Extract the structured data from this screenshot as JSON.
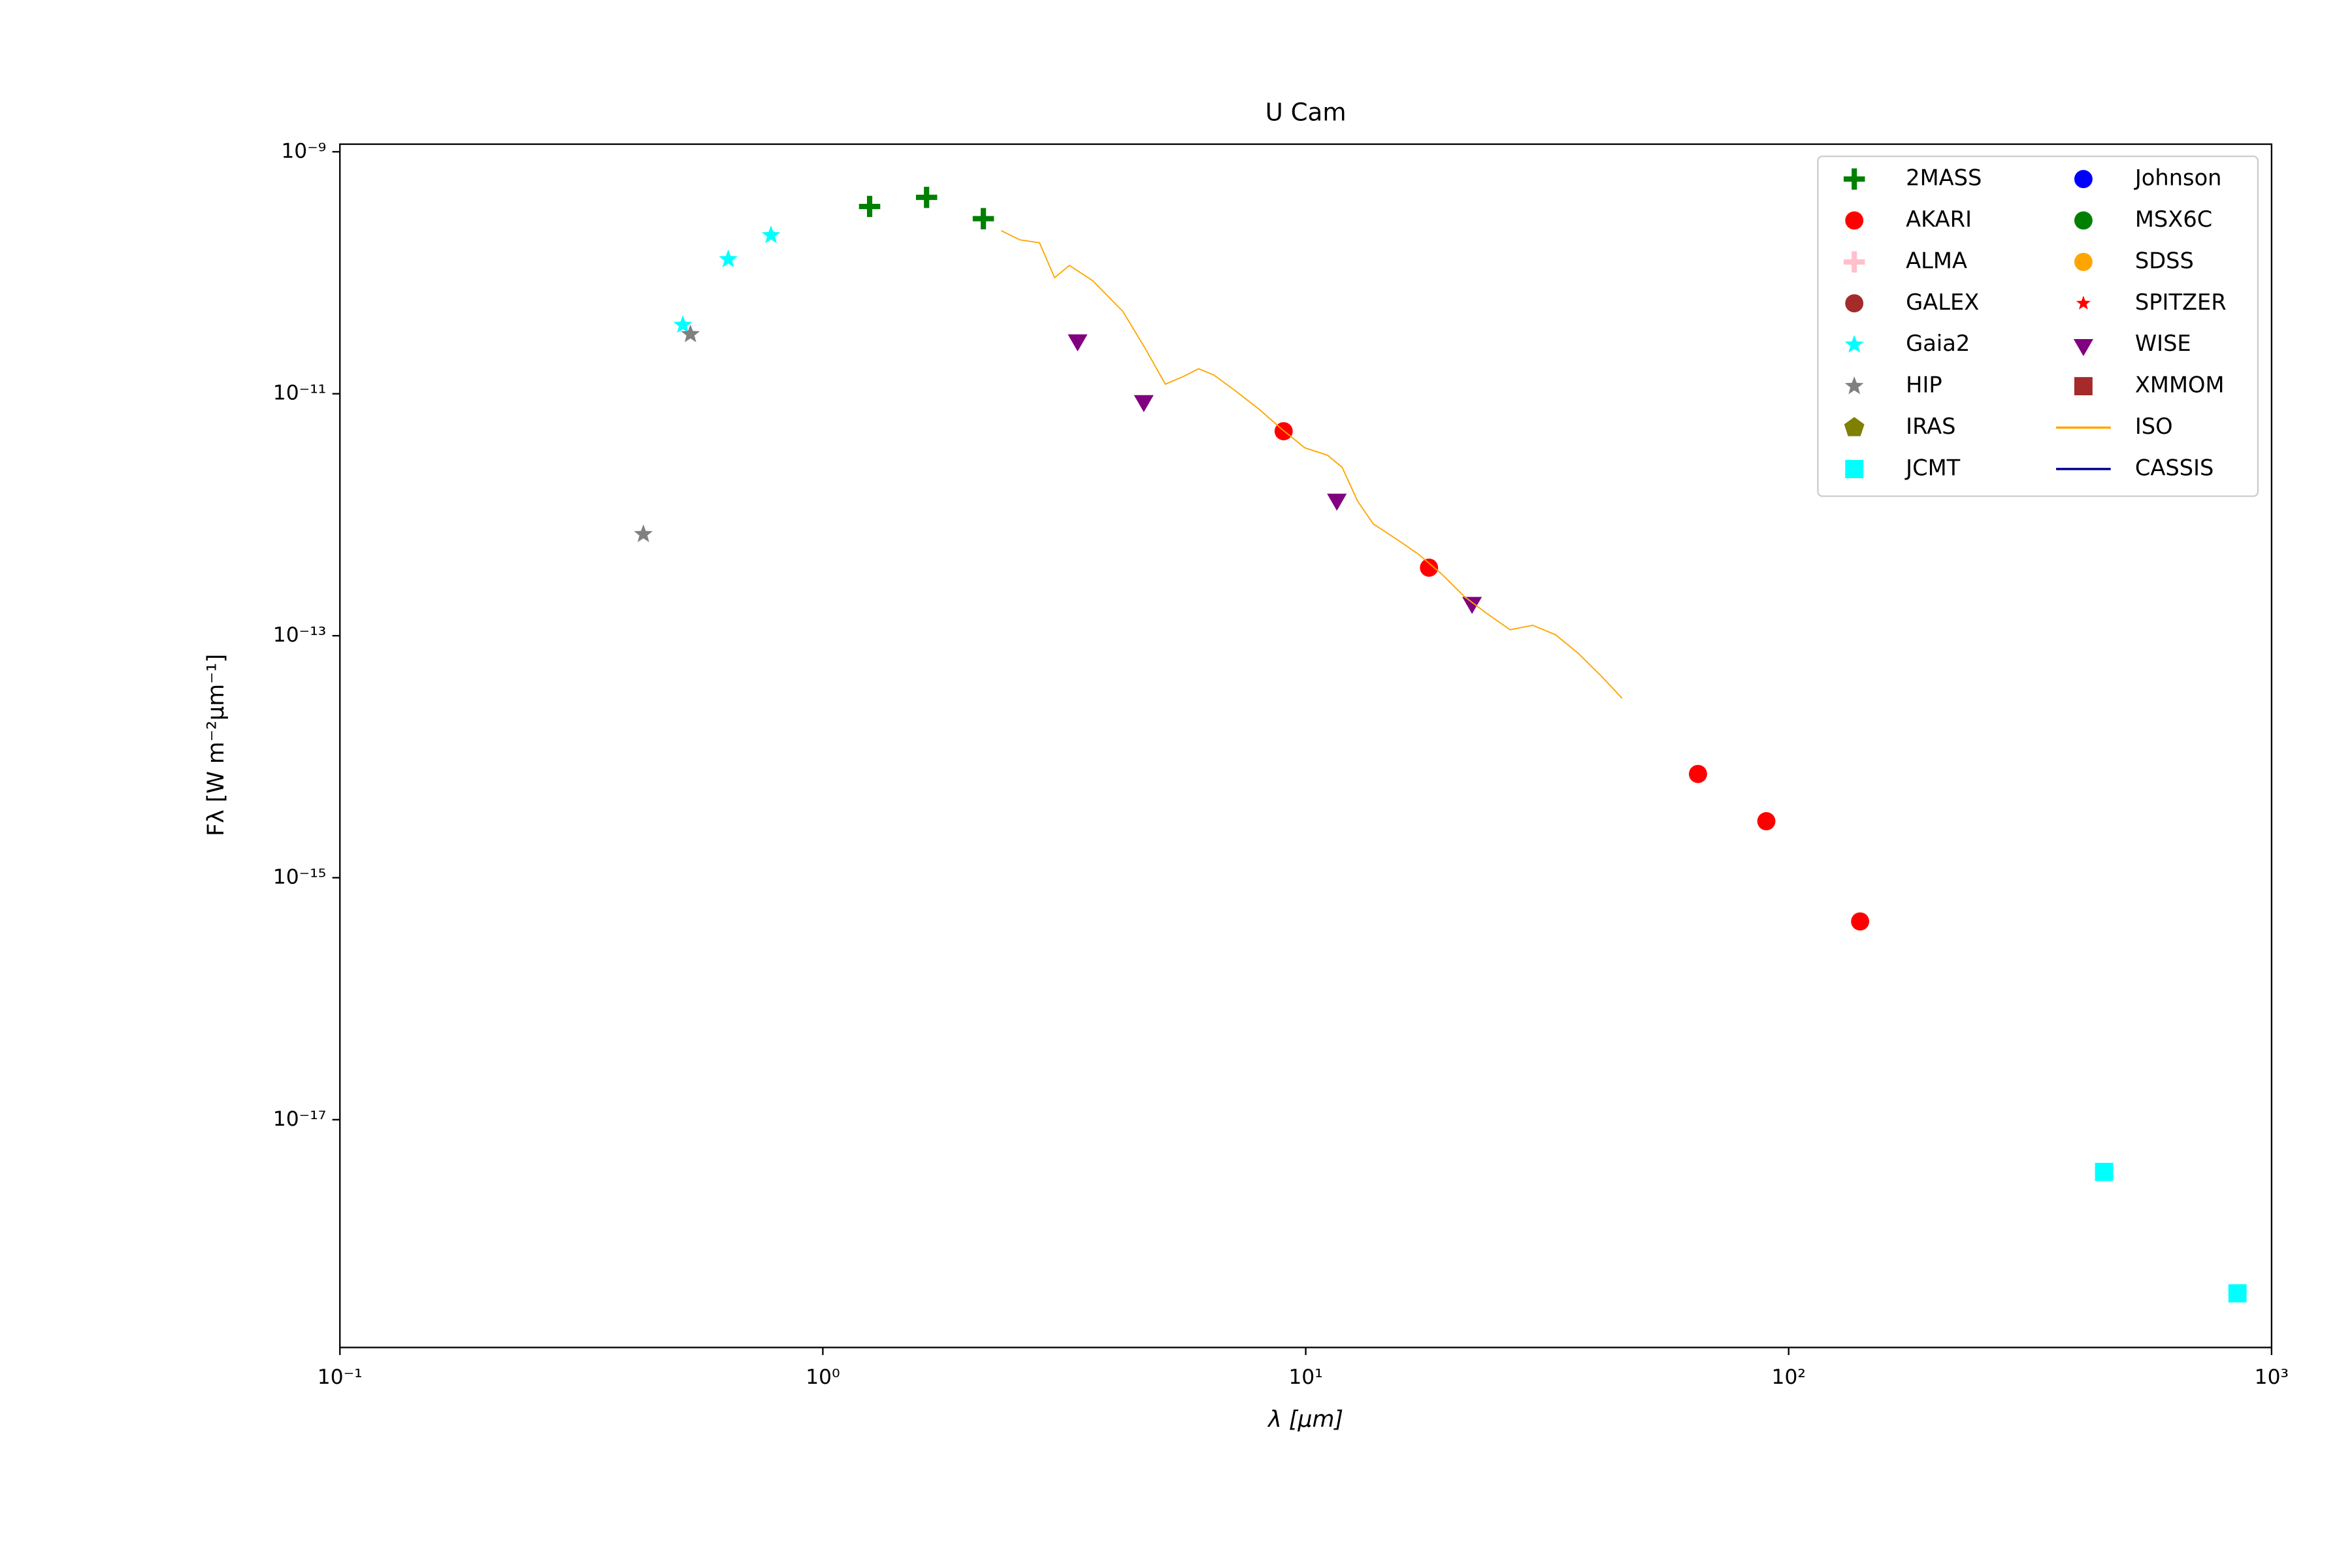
{
  "chart_data": {
    "type": "scatter",
    "title": "U Cam",
    "xlabel": "λ [μm]",
    "ylabel": "Fλ [W m⁻²μm⁻¹]",
    "xscale": "log",
    "yscale": "log",
    "xlim": [
      0.1,
      1000
    ],
    "ylim": [
      1.31e-19,
      1.156e-09
    ],
    "xticks": [
      {
        "value": 0.1,
        "label": "10⁻¹"
      },
      {
        "value": 1,
        "label": "10⁰"
      },
      {
        "value": 10,
        "label": "10¹"
      },
      {
        "value": 100,
        "label": "10²"
      },
      {
        "value": 1000,
        "label": "10³"
      }
    ],
    "yticks": [
      {
        "value": 1e-17,
        "label": "10⁻¹⁷"
      },
      {
        "value": 1e-15,
        "label": "10⁻¹⁵"
      },
      {
        "value": 1e-13,
        "label": "10⁻¹³"
      },
      {
        "value": 1e-11,
        "label": "10⁻¹¹"
      },
      {
        "value": 1e-09,
        "label": "10⁻⁹"
      }
    ],
    "legend": "upper right",
    "series": [
      {
        "name": "2MASS",
        "color": "#008000",
        "marker": "plus",
        "x": [
          1.25,
          1.64,
          2.15
        ],
        "values": [
          3.53e-10,
          4.2e-10,
          2.8e-10
        ]
      },
      {
        "name": "AKARI",
        "color": "#ff0000",
        "marker": "circle",
        "x": [
          9.0,
          18.0,
          64.9,
          89.9,
          140.6
        ],
        "values": [
          4.9e-12,
          3.65e-13,
          7.2e-15,
          2.93e-15,
          4.35e-16
        ]
      },
      {
        "name": "ALMA",
        "color": "#ffc0cb",
        "marker": "plus",
        "x": [],
        "values": []
      },
      {
        "name": "GALEX",
        "color": "#a52a2a",
        "marker": "circle",
        "x": [],
        "values": []
      },
      {
        "name": "Gaia2",
        "color": "#00ffff",
        "marker": "star",
        "x": [
          0.513,
          0.637,
          0.781
        ],
        "values": [
          3.7e-11,
          1.29e-10,
          2.04e-10
        ]
      },
      {
        "name": "HIP",
        "color": "#808080",
        "marker": "star",
        "x": [
          0.532,
          0.425
        ],
        "values": [
          3.1e-11,
          6.9e-13
        ]
      },
      {
        "name": "IRAS",
        "color": "#808000",
        "marker": "pentagon",
        "x": [],
        "values": []
      },
      {
        "name": "JCMT",
        "color": "#00ffff",
        "marker": "square",
        "x": [
          450,
          850
        ],
        "values": [
          3.7e-18,
          3.67e-19
        ]
      },
      {
        "name": "Johnson",
        "color": "#0000ff",
        "marker": "circle",
        "x": [],
        "values": []
      },
      {
        "name": "MSX6C",
        "color": "#008000",
        "marker": "circle",
        "x": [],
        "values": []
      },
      {
        "name": "SDSS",
        "color": "#ffa500",
        "marker": "circle",
        "x": [],
        "values": []
      },
      {
        "name": "SPITZER",
        "color": "#ff0000",
        "marker": "smallstar",
        "x": [],
        "values": []
      },
      {
        "name": "WISE",
        "color": "#800080",
        "marker": "triangle-down",
        "x": [
          3.37,
          4.62,
          11.6,
          22.1
        ],
        "values": [
          2.78e-11,
          8.75e-12,
          1.34e-12,
          1.88e-13
        ]
      },
      {
        "name": "XMMOM",
        "color": "#a52a2a",
        "marker": "square",
        "x": [],
        "values": []
      },
      {
        "name": "ISO",
        "color": "#ffa500",
        "marker": "line",
        "x": [
          2.34,
          2.56,
          2.81,
          3.02,
          3.24,
          3.62,
          4.18,
          4.66,
          5.12,
          5.58,
          6.0,
          6.45,
          7.19,
          8.02,
          8.94,
          9.96,
          11.1,
          11.9,
          12.8,
          13.8,
          15.4,
          17.1,
          19.1,
          21.3,
          23.7,
          26.5,
          29.5,
          32.9,
          36.6,
          40.8,
          45.2
        ],
        "values": [
          2.23e-10,
          1.87e-10,
          1.77e-10,
          9.1e-11,
          1.15e-10,
          8.6e-11,
          4.8e-11,
          2.34e-11,
          1.2e-11,
          1.39e-11,
          1.61e-11,
          1.43e-11,
          1.04e-11,
          7.4e-12,
          5.06e-12,
          3.57e-12,
          3.1e-12,
          2.46e-12,
          1.3e-12,
          8.4e-13,
          6.3e-13,
          4.73e-13,
          3.25e-13,
          2.11e-13,
          1.53e-13,
          1.12e-13,
          1.22e-13,
          1.02e-13,
          7.2e-14,
          4.7e-14,
          3.04e-14
        ]
      },
      {
        "name": "CASSIS",
        "color": "#00008b",
        "marker": "line",
        "x": [],
        "values": []
      }
    ]
  }
}
